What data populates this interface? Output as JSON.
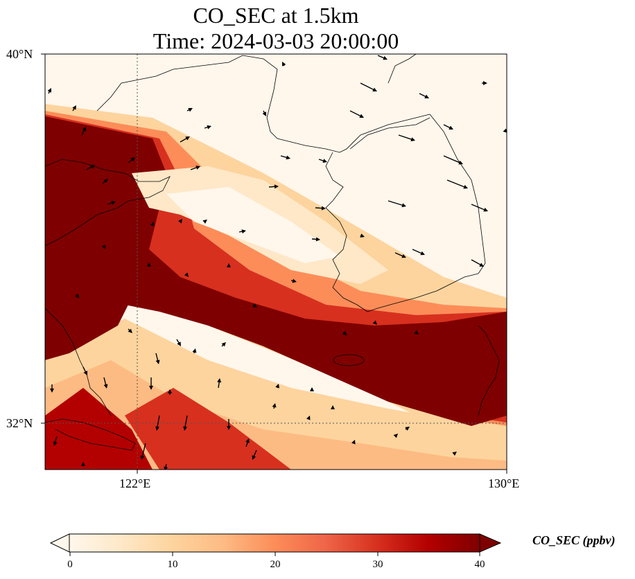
{
  "title": {
    "line1": "CO_SEC at 1.5km",
    "line2": "Time: 2024-03-03 20:00:00"
  },
  "axes": {
    "lon_range": [
      120,
      130
    ],
    "lat_range": [
      31,
      40
    ],
    "x_ticks": [
      {
        "value": 122,
        "label": "122°E"
      },
      {
        "value": 130,
        "label": "130°E"
      }
    ],
    "y_ticks": [
      {
        "value": 40,
        "label": "40°N"
      },
      {
        "value": 32,
        "label": "32°N"
      }
    ],
    "gridlines": "dotted at 122°E and 32°N"
  },
  "colorbar": {
    "label": "CO_SEC (ppbv)",
    "range": [
      0,
      40
    ],
    "extend": "both",
    "colormap": "OrRd",
    "ticks": [
      {
        "value": 0,
        "label": "0"
      },
      {
        "value": 10,
        "label": "10"
      },
      {
        "value": 20,
        "label": "20"
      },
      {
        "value": 30,
        "label": "30"
      },
      {
        "value": 40,
        "label": "40"
      }
    ],
    "colors": [
      "#fff7ec",
      "#fee8c8",
      "#fdd49e",
      "#fdbb84",
      "#fc8d59",
      "#ef6548",
      "#d7301f",
      "#b30000",
      "#7f0000"
    ]
  },
  "chart_data": {
    "type": "heatmap",
    "variable": "CO_SEC",
    "units": "ppbv",
    "description_bands": [
      {
        "region": "western edge / Shandong & Yellow Sea west",
        "approx_value": 40
      },
      {
        "region": "diagonal plume from 122°E 39°N to 130°E 33°N",
        "approx_value": 35
      },
      {
        "region": "Korean peninsula & northern Yellow Sea",
        "approx_value": 2
      },
      {
        "region": "southern band near 31-32°N",
        "approx_value": 12
      }
    ],
    "wind_vectors": "quiver arrows, flow generally eastward in north, northward in south"
  }
}
